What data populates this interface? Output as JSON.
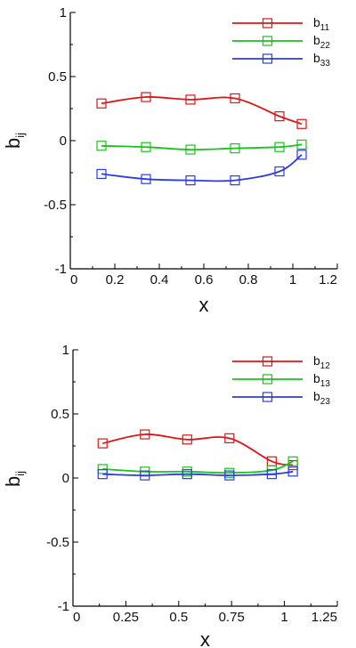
{
  "chart_data": [
    {
      "type": "line",
      "xlabel": "x",
      "ylabel": {
        "main": "b",
        "sub": "ij"
      },
      "xlim": [
        0,
        1.2
      ],
      "ylim": [
        -1,
        1
      ],
      "xticks": [
        0,
        0.2,
        0.4,
        0.6,
        0.8,
        1,
        1.2
      ],
      "xtick_labels": [
        "0",
        "0.2",
        "0.4",
        "0.6",
        "0.8",
        "1",
        "1.2"
      ],
      "yticks": [
        -1,
        -0.5,
        0,
        0.5,
        1
      ],
      "ytick_labels": [
        "-1",
        "-0.5",
        "0",
        "0.5",
        "1"
      ],
      "grid": false,
      "legend_position": "top-right",
      "marker": "square",
      "x": [
        0.14,
        0.34,
        0.54,
        0.74,
        0.94,
        1.04
      ],
      "series": [
        {
          "name": {
            "main": "b",
            "sub": "11"
          },
          "color": "#e01414",
          "values": [
            0.29,
            0.34,
            0.32,
            0.33,
            0.19,
            0.13
          ]
        },
        {
          "name": {
            "main": "b",
            "sub": "22"
          },
          "color": "#18c418",
          "values": [
            -0.04,
            -0.05,
            -0.07,
            -0.06,
            -0.05,
            -0.03
          ]
        },
        {
          "name": {
            "main": "b",
            "sub": "33"
          },
          "color": "#2b3be8",
          "values": [
            -0.26,
            -0.3,
            -0.31,
            -0.31,
            -0.24,
            -0.11
          ]
        }
      ]
    },
    {
      "type": "line",
      "xlabel": "x",
      "ylabel": {
        "main": "b",
        "sub": "ij"
      },
      "xlim": [
        0,
        1.25
      ],
      "ylim": [
        -1,
        1
      ],
      "xticks": [
        0,
        0.25,
        0.5,
        0.75,
        1,
        1.25
      ],
      "xtick_labels": [
        "0",
        "0.25",
        "0.5",
        "0.75",
        "1",
        "1.25"
      ],
      "yticks": [
        -1,
        -0.5,
        0,
        0.5,
        1
      ],
      "ytick_labels": [
        "-1",
        "-0.5",
        "0",
        "0.5",
        "1"
      ],
      "grid": false,
      "legend_position": "top-right",
      "marker": "square",
      "x": [
        0.14,
        0.34,
        0.54,
        0.74,
        0.94,
        1.04
      ],
      "series": [
        {
          "name": {
            "main": "b",
            "sub": "12"
          },
          "color": "#e01414",
          "values": [
            0.27,
            0.34,
            0.3,
            0.31,
            0.13,
            0.1
          ]
        },
        {
          "name": {
            "main": "b",
            "sub": "13"
          },
          "color": "#18c418",
          "values": [
            0.07,
            0.05,
            0.05,
            0.04,
            0.06,
            0.13
          ]
        },
        {
          "name": {
            "main": "b",
            "sub": "23"
          },
          "color": "#2b3be8",
          "values": [
            0.03,
            0.02,
            0.03,
            0.02,
            0.03,
            0.05
          ]
        }
      ]
    }
  ]
}
